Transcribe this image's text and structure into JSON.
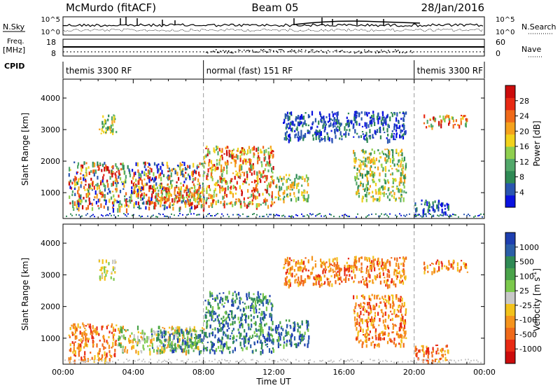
{
  "header": {
    "station": "McMurdo (fitACF)",
    "beam": "Beam 05",
    "date": "28/Jan/2016"
  },
  "top_panels": {
    "nsky_label": "N.Sky",
    "nsky_ticks": [
      "10^5",
      "10^0"
    ],
    "nsearch_label": "N.Search",
    "nsearch_ticks": [
      "10^5",
      "10^0"
    ],
    "freq_label": "Freq.",
    "freq_unit": "[MHz]",
    "freq_ticks": [
      "18",
      "8"
    ],
    "nave_label": "Nave",
    "nave_ticks": [
      "60",
      "0"
    ],
    "cpid_label": "CPID"
  },
  "cpid_segments": [
    {
      "start_hour": 0,
      "end_hour": 8,
      "label": "themis 3300 RF"
    },
    {
      "start_hour": 8,
      "end_hour": 20,
      "label": "normal (fast) 151 RF"
    },
    {
      "start_hour": 20,
      "end_hour": 24,
      "label": "themis 3300 RF"
    }
  ],
  "chart_data": [
    {
      "type": "heatmap",
      "name": "power",
      "xlabel": "",
      "ylabel": "Slant Range [km]",
      "xlim": [
        0,
        24
      ],
      "ylim": [
        180,
        4600
      ],
      "yticks": [
        1000,
        2000,
        3000,
        4000
      ],
      "colorbar": {
        "label": "Power [dB]",
        "ticks": [
          "4",
          "8",
          "12",
          "16",
          "20",
          "24",
          "28"
        ],
        "colors": [
          "#0a12e0",
          "#2a56b0",
          "#2f8a55",
          "#52a86a",
          "#8fcf4f",
          "#f2d21c",
          "#f5a21d",
          "#f06a1a",
          "#e82a14",
          "#cc0c0c"
        ]
      },
      "mode_change_hours": [
        8,
        20
      ],
      "data": [
        {
          "hours": [
            0.3,
            8
          ],
          "range_km": [
            500,
            2000
          ],
          "level": "mixed"
        },
        {
          "hours": [
            2,
            3
          ],
          "range_km": [
            2900,
            3500
          ],
          "level": "medium"
        },
        {
          "hours": [
            5,
            8
          ],
          "range_km": [
            600,
            1300
          ],
          "level": "high"
        },
        {
          "hours": [
            8,
            12
          ],
          "range_km": [
            600,
            2500
          ],
          "level": "high"
        },
        {
          "hours": [
            12,
            14
          ],
          "range_km": [
            800,
            1600
          ],
          "level": "medium"
        },
        {
          "hours": [
            12.5,
            19.5
          ],
          "range_km": [
            2700,
            3600
          ],
          "level": "low"
        },
        {
          "hours": [
            16.5,
            19.5
          ],
          "range_km": [
            800,
            2400
          ],
          "level": "medium"
        },
        {
          "hours": [
            20,
            22
          ],
          "range_km": [
            300,
            800
          ],
          "level": "low"
        },
        {
          "hours": [
            20.5,
            23
          ],
          "range_km": [
            3100,
            3500
          ],
          "level": "high"
        }
      ]
    },
    {
      "type": "heatmap",
      "name": "velocity",
      "xlabel": "Time UT",
      "ylabel": "Slant Range [km]",
      "xlim": [
        0,
        24
      ],
      "ylim": [
        180,
        4600
      ],
      "xticks": [
        "00:00",
        "04:00",
        "08:00",
        "12:00",
        "16:00",
        "20:00",
        "00:00"
      ],
      "yticks": [
        1000,
        2000,
        3000,
        4000
      ],
      "colorbar": {
        "label": "Velocity [m s",
        "label_superscript": "-1",
        "label_tail": "]",
        "ticks": [
          "1000",
          "500",
          "100",
          "25",
          "-25",
          "-100",
          "-500",
          "-1000"
        ],
        "colors": [
          "#1e3fb0",
          "#2b5fa8",
          "#2f8a55",
          "#4aa34a",
          "#7cc94c",
          "#c8c8c8",
          "#f2c21c",
          "#f5941d",
          "#f06a1a",
          "#e82a14",
          "#cc0c0c"
        ]
      },
      "mode_change_hours": [
        8,
        20
      ],
      "data": [
        {
          "hours": [
            0.3,
            3
          ],
          "range_km": [
            300,
            1500
          ],
          "level": "negative"
        },
        {
          "hours": [
            3,
            8
          ],
          "range_km": [
            600,
            1400
          ],
          "level": "weak-mixed"
        },
        {
          "hours": [
            2,
            3
          ],
          "range_km": [
            2900,
            3500
          ],
          "level": "near-zero"
        },
        {
          "hours": [
            5,
            8
          ],
          "range_km": [
            600,
            1300
          ],
          "level": "positive"
        },
        {
          "hours": [
            8,
            12
          ],
          "range_km": [
            600,
            2500
          ],
          "level": "positive"
        },
        {
          "hours": [
            12,
            14
          ],
          "range_km": [
            800,
            1600
          ],
          "level": "positive"
        },
        {
          "hours": [
            12.5,
            19.5
          ],
          "range_km": [
            2700,
            3600
          ],
          "level": "negative"
        },
        {
          "hours": [
            16.5,
            19.5
          ],
          "range_km": [
            800,
            2400
          ],
          "level": "negative"
        },
        {
          "hours": [
            20,
            22
          ],
          "range_km": [
            300,
            800
          ],
          "level": "negative"
        },
        {
          "hours": [
            20.5,
            23
          ],
          "range_km": [
            3100,
            3500
          ],
          "level": "negative"
        }
      ]
    }
  ]
}
